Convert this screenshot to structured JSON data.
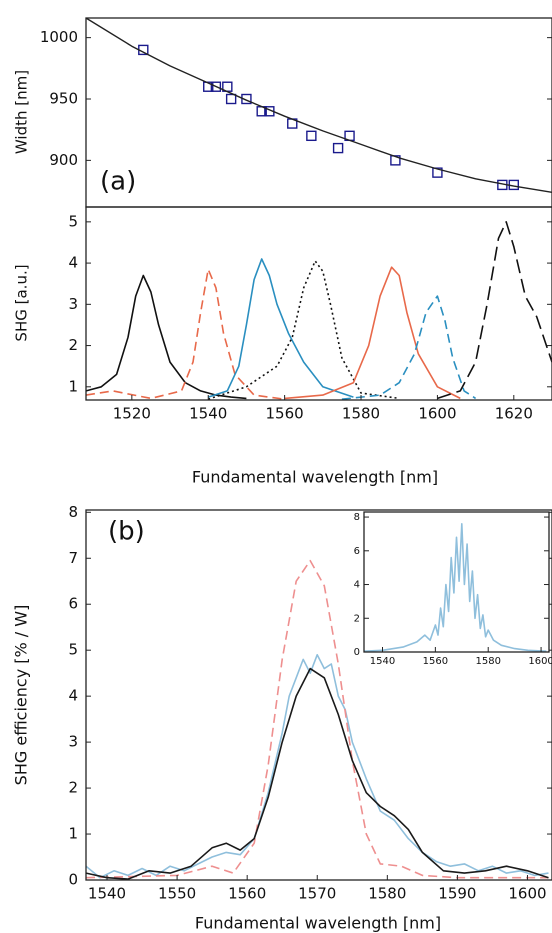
{
  "chart_data": [
    {
      "type": "scatter",
      "panel_label": "(a)",
      "ylabel": "Width [nm]",
      "xlim": [
        1508,
        1630
      ],
      "ylim": [
        862,
        1016
      ],
      "yticks": [
        900,
        950,
        1000
      ],
      "series": [
        {
          "style": "markers",
          "color": "#1a1a8c",
          "x": [
            1523,
            1540,
            1542,
            1545,
            1546,
            1550,
            1554,
            1556,
            1562,
            1567,
            1574,
            1577,
            1589,
            1600,
            1617,
            1620
          ],
          "values": [
            990,
            960,
            960,
            960,
            950,
            950,
            940,
            940,
            930,
            920,
            910,
            920,
            900,
            890,
            880,
            880
          ]
        },
        {
          "style": "solid",
          "color": "#222222",
          "x": [
            1508,
            1520,
            1530,
            1540,
            1550,
            1560,
            1570,
            1580,
            1590,
            1600,
            1610,
            1620,
            1630
          ],
          "values": [
            1016,
            993,
            977,
            963,
            949,
            936,
            924,
            913,
            902,
            893,
            885,
            879,
            874
          ]
        }
      ]
    },
    {
      "type": "line",
      "ylabel": "SHG [a.u.]",
      "xlabel": "Fundamental wavelength [nm]",
      "xlim": [
        1508,
        1630
      ],
      "ylim": [
        0.68,
        5.36
      ],
      "yticks": [
        1,
        2,
        3,
        4,
        5
      ],
      "xticks": [
        1520,
        1540,
        1560,
        1580,
        1600,
        1620
      ],
      "series": [
        {
          "style": "solid",
          "color": "#111111",
          "x": [
            1508,
            1512,
            1516,
            1519,
            1521,
            1523,
            1525,
            1527,
            1530,
            1534,
            1538,
            1542,
            1546,
            1550
          ],
          "values": [
            0.9,
            1.0,
            1.3,
            2.2,
            3.2,
            3.7,
            3.3,
            2.5,
            1.6,
            1.1,
            0.9,
            0.8,
            0.75,
            0.72
          ]
        },
        {
          "style": "dashed",
          "color": "#e8694a",
          "x": [
            1508,
            1515,
            1525,
            1533,
            1536,
            1538,
            1540,
            1542,
            1544,
            1547,
            1552,
            1560
          ],
          "values": [
            0.8,
            0.9,
            0.72,
            0.9,
            1.6,
            2.8,
            3.85,
            3.4,
            2.3,
            1.3,
            0.8,
            0.7
          ]
        },
        {
          "style": "solid",
          "color": "#2a8fc0",
          "x": [
            1540,
            1545,
            1548,
            1550,
            1552,
            1554,
            1556,
            1558,
            1561,
            1565,
            1570,
            1578
          ],
          "values": [
            0.75,
            0.9,
            1.5,
            2.5,
            3.6,
            4.1,
            3.7,
            3.0,
            2.3,
            1.6,
            1.0,
            0.75
          ]
        },
        {
          "style": "dotted",
          "color": "#111111",
          "x": [
            1540,
            1550,
            1558,
            1562,
            1565,
            1568,
            1570,
            1572,
            1575,
            1580,
            1590
          ],
          "values": [
            0.7,
            1.0,
            1.5,
            2.2,
            3.4,
            4.05,
            3.8,
            3.0,
            1.7,
            0.85,
            0.72
          ]
        },
        {
          "style": "solid",
          "color": "#e8694a",
          "x": [
            1560,
            1570,
            1578,
            1582,
            1585,
            1588,
            1590,
            1592,
            1595,
            1600,
            1606
          ],
          "values": [
            0.72,
            0.8,
            1.1,
            2.0,
            3.2,
            3.9,
            3.7,
            2.8,
            1.8,
            1.0,
            0.72
          ]
        },
        {
          "style": "dashed",
          "color": "#2a8fc0",
          "x": [
            1575,
            1585,
            1590,
            1594,
            1597,
            1600,
            1602,
            1604,
            1607,
            1610
          ],
          "values": [
            0.7,
            0.8,
            1.1,
            1.8,
            2.8,
            3.2,
            2.6,
            1.7,
            0.9,
            0.72
          ]
        },
        {
          "style": "longdash",
          "color": "#111111",
          "x": [
            1600,
            1606,
            1610,
            1613,
            1616,
            1618,
            1620,
            1623,
            1626,
            1630
          ],
          "values": [
            0.72,
            0.9,
            1.6,
            3.0,
            4.6,
            5.0,
            4.4,
            3.2,
            2.7,
            1.6
          ]
        }
      ]
    },
    {
      "type": "line",
      "panel_label": "(b)",
      "ylabel": "SHG efficiency [% / W]",
      "xlabel": "Fundamental wavelength [nm]",
      "xlim": [
        1537,
        1603.5
      ],
      "ylim": [
        0,
        8.05
      ],
      "yticks": [
        0,
        1,
        2,
        3,
        4,
        5,
        6,
        7,
        8
      ],
      "xticks": [
        1540,
        1550,
        1560,
        1570,
        1580,
        1590,
        1600
      ],
      "series": [
        {
          "style": "solid",
          "color": "#8fbfdc",
          "x": [
            1537,
            1539,
            1541,
            1543,
            1545,
            1547,
            1549,
            1551,
            1553,
            1555,
            1557,
            1559,
            1561,
            1563,
            1565,
            1566,
            1567,
            1568,
            1569,
            1570,
            1571,
            1572,
            1573,
            1574,
            1575,
            1577,
            1579,
            1581,
            1583,
            1585,
            1587,
            1589,
            1591,
            1593,
            1595,
            1597,
            1599,
            1601,
            1603
          ],
          "values": [
            0.3,
            0.05,
            0.2,
            0.1,
            0.25,
            0.1,
            0.3,
            0.2,
            0.35,
            0.5,
            0.6,
            0.55,
            0.9,
            1.9,
            3.2,
            4.0,
            4.4,
            4.8,
            4.5,
            4.9,
            4.6,
            4.7,
            4.0,
            3.7,
            3.0,
            2.2,
            1.5,
            1.3,
            0.9,
            0.6,
            0.4,
            0.3,
            0.35,
            0.2,
            0.3,
            0.15,
            0.2,
            0.1,
            0.15
          ]
        },
        {
          "style": "dashed",
          "color": "#ee8f8f",
          "x": [
            1537,
            1550,
            1555,
            1558,
            1561,
            1563,
            1565,
            1567,
            1569,
            1571,
            1573,
            1575,
            1577,
            1579,
            1582,
            1585,
            1590,
            1603
          ],
          "values": [
            0.05,
            0.1,
            0.3,
            0.15,
            0.8,
            2.5,
            4.8,
            6.5,
            6.95,
            6.4,
            4.7,
            2.6,
            1.0,
            0.35,
            0.3,
            0.1,
            0.05,
            0.05
          ]
        },
        {
          "style": "solid",
          "color": "#1a1a1a",
          "x": [
            1537,
            1540,
            1543,
            1546,
            1549,
            1552,
            1555,
            1557,
            1559,
            1561,
            1563,
            1565,
            1567,
            1569,
            1571,
            1573,
            1575,
            1577,
            1579,
            1581,
            1583,
            1585,
            1588,
            1591,
            1594,
            1597,
            1600,
            1603
          ],
          "values": [
            0.15,
            0.05,
            0.02,
            0.2,
            0.15,
            0.3,
            0.7,
            0.8,
            0.65,
            0.9,
            1.8,
            3.0,
            4.0,
            4.6,
            4.4,
            3.6,
            2.6,
            1.9,
            1.6,
            1.4,
            1.1,
            0.6,
            0.2,
            0.15,
            0.2,
            0.3,
            0.2,
            0.05
          ]
        }
      ]
    },
    {
      "type": "line",
      "xlim": [
        1533,
        1603
      ],
      "ylim": [
        0,
        8.3
      ],
      "yticks": [
        0,
        2,
        4,
        6,
        8
      ],
      "xticks": [
        1540,
        1560,
        1580,
        1600
      ],
      "series": [
        {
          "style": "solid",
          "color": "#8fbfdc",
          "x": [
            1533,
            1540,
            1548,
            1553,
            1556,
            1558,
            1560,
            1561,
            1562,
            1563,
            1564,
            1565,
            1566,
            1567,
            1568,
            1569,
            1570,
            1571,
            1572,
            1573,
            1574,
            1575,
            1576,
            1577,
            1578,
            1579,
            1580,
            1582,
            1585,
            1590,
            1595,
            1602
          ],
          "values": [
            0.05,
            0.1,
            0.3,
            0.6,
            1.0,
            0.7,
            1.6,
            1.0,
            2.6,
            1.5,
            4.0,
            2.4,
            5.6,
            3.5,
            6.8,
            4.2,
            7.6,
            4.0,
            6.4,
            3.0,
            4.8,
            2.0,
            3.4,
            1.4,
            2.2,
            0.9,
            1.3,
            0.7,
            0.4,
            0.2,
            0.1,
            0.05
          ]
        }
      ]
    }
  ]
}
